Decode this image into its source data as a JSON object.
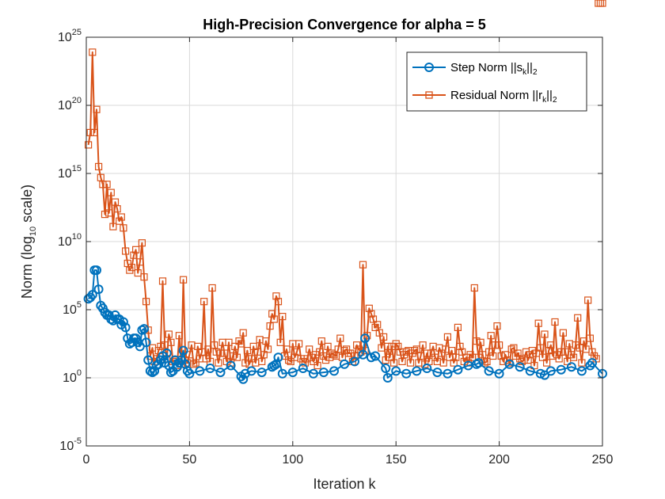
{
  "chart_data": {
    "type": "line",
    "title": "High-Precision Convergence for alpha = 5",
    "xlabel": "Iteration k",
    "ylabel": {
      "before": "Norm (log",
      "sub": "10",
      "after": " scale)"
    },
    "xlim": [
      0,
      250
    ],
    "ylim_log10": [
      -5,
      25
    ],
    "yscale": "log",
    "grid": true,
    "legend_position": "top-right",
    "x_ticks": [
      "0",
      "50",
      "100",
      "150",
      "200",
      "250"
    ],
    "y_ticks": [
      {
        "base": "10",
        "exp": "-5"
      },
      {
        "base": "10",
        "exp": "0"
      },
      {
        "base": "10",
        "exp": "5"
      },
      {
        "base": "10",
        "exp": "10"
      },
      {
        "base": "10",
        "exp": "15"
      },
      {
        "base": "10",
        "exp": "20"
      },
      {
        "base": "10",
        "exp": "25"
      }
    ],
    "series": [
      {
        "name": "Step Norm ||s_k||_2",
        "legend": {
          "before": "Step Norm ||s",
          "sub": "k",
          "after": "||",
          "sub2": "2"
        },
        "color": "#0072BD",
        "marker": "circle",
        "x": [
          1,
          2,
          3,
          4,
          5,
          6,
          7,
          8,
          9,
          10,
          11,
          12,
          13,
          14,
          15,
          16,
          17,
          18,
          19,
          20,
          21,
          22,
          23,
          24,
          25,
          26,
          27,
          28,
          29,
          30,
          31,
          32,
          33,
          34,
          35,
          36,
          37,
          38,
          39,
          40,
          41,
          42,
          43,
          44,
          45,
          46,
          47,
          48,
          49,
          50,
          55,
          60,
          65,
          70,
          75,
          76,
          77,
          80,
          85,
          90,
          91,
          92,
          93,
          95,
          100,
          105,
          110,
          115,
          120,
          125,
          130,
          134,
          135,
          138,
          140,
          145,
          146,
          150,
          155,
          160,
          165,
          170,
          175,
          180,
          185,
          189,
          190,
          195,
          200,
          205,
          210,
          215,
          220,
          222,
          225,
          230,
          235,
          240,
          244,
          245,
          250
        ],
        "log10_y": [
          5.8,
          5.9,
          6.1,
          7.9,
          7.9,
          6.5,
          5.3,
          5.1,
          4.8,
          4.6,
          4.6,
          4.3,
          4.2,
          4.6,
          4.3,
          4.3,
          3.9,
          4.1,
          3.7,
          2.9,
          2.5,
          2.6,
          2.9,
          2.9,
          2.6,
          2.3,
          3.5,
          3.6,
          2.6,
          1.3,
          0.5,
          0.4,
          0.5,
          0.9,
          1.0,
          1.3,
          1.6,
          1.1,
          1.8,
          0.9,
          0.4,
          0.5,
          1.3,
          0.8,
          1.1,
          1.3,
          2.0,
          1.0,
          0.5,
          0.3,
          0.5,
          0.7,
          0.4,
          0.9,
          0.1,
          -0.1,
          0.3,
          0.5,
          0.4,
          0.8,
          0.9,
          1.0,
          1.5,
          0.3,
          0.4,
          0.7,
          0.3,
          0.4,
          0.5,
          1.0,
          1.2,
          1.7,
          2.9,
          1.5,
          1.6,
          0.7,
          0.0,
          0.5,
          0.3,
          0.5,
          0.7,
          0.4,
          0.3,
          0.6,
          0.9,
          1.0,
          1.1,
          0.5,
          0.3,
          1.0,
          0.8,
          0.5,
          0.3,
          0.2,
          0.5,
          0.6,
          0.8,
          0.5,
          0.9,
          1.1,
          0.3
        ]
      },
      {
        "name": "Residual Norm ||r_k||_2",
        "legend": {
          "before": "Residual Norm ||r",
          "sub": "k",
          "after": "||",
          "sub2": "2"
        },
        "color": "#D95319",
        "marker": "square",
        "x": [
          1,
          2,
          3,
          4,
          5,
          6,
          7,
          8,
          9,
          10,
          11,
          12,
          13,
          14,
          15,
          16,
          17,
          18,
          19,
          20,
          21,
          22,
          23,
          24,
          25,
          26,
          27,
          28,
          29,
          30,
          31,
          32,
          33,
          34,
          35,
          36,
          37,
          38,
          39,
          40,
          41,
          42,
          43,
          44,
          45,
          46,
          47,
          48,
          49,
          50,
          51,
          52,
          53,
          54,
          55,
          56,
          57,
          58,
          59,
          60,
          61,
          62,
          63,
          64,
          65,
          66,
          67,
          68,
          69,
          70,
          71,
          72,
          73,
          74,
          75,
          76,
          77,
          78,
          79,
          80,
          81,
          82,
          83,
          84,
          85,
          86,
          87,
          88,
          89,
          90,
          91,
          92,
          93,
          94,
          95,
          96,
          97,
          98,
          99,
          100,
          101,
          102,
          103,
          104,
          105,
          106,
          107,
          108,
          109,
          110,
          111,
          112,
          113,
          114,
          115,
          116,
          117,
          118,
          119,
          120,
          121,
          122,
          123,
          124,
          125,
          126,
          127,
          128,
          129,
          130,
          131,
          132,
          133,
          134,
          135,
          136,
          137,
          138,
          139,
          140,
          141,
          142,
          143,
          144,
          145,
          146,
          147,
          148,
          149,
          150,
          151,
          152,
          153,
          154,
          155,
          156,
          157,
          158,
          159,
          160,
          161,
          162,
          163,
          164,
          165,
          166,
          167,
          168,
          169,
          170,
          171,
          172,
          173,
          174,
          175,
          176,
          177,
          178,
          179,
          180,
          181,
          182,
          183,
          184,
          185,
          186,
          187,
          188,
          189,
          190,
          191,
          192,
          193,
          194,
          195,
          196,
          197,
          198,
          199,
          200,
          201,
          202,
          203,
          204,
          205,
          206,
          207,
          208,
          209,
          210,
          211,
          212,
          213,
          214,
          215,
          216,
          217,
          218,
          219,
          220,
          221,
          222,
          223,
          224,
          225,
          226,
          227,
          228,
          229,
          230,
          231,
          232,
          233,
          234,
          235,
          236,
          237,
          238,
          239,
          240,
          241,
          242,
          243,
          244,
          245,
          246,
          247,
          248,
          249,
          250
        ],
        "log10_y": [
          17.1,
          18.0,
          23.9,
          18.0,
          19.7,
          15.5,
          14.7,
          14.2,
          12.0,
          14.2,
          12.1,
          13.6,
          11.1,
          12.9,
          12.4,
          11.5,
          11.8,
          11.0,
          9.3,
          8.4,
          7.9,
          8.1,
          9.0,
          9.4,
          7.7,
          8.5,
          9.9,
          7.4,
          5.6,
          3.5,
          1.6,
          2.2,
          1.2,
          1.4,
          2.0,
          2.3,
          7.1,
          2.4,
          1.4,
          3.2,
          2.6,
          1.2,
          1.3,
          0.9,
          3.1,
          1.0,
          7.2,
          1.3,
          1.1,
          1.7,
          2.4,
          1.0,
          1.1,
          2.3,
          1.4,
          1.9,
          5.6,
          1.4,
          2.1,
          1.2,
          6.6,
          2.4,
          1.9,
          1.1,
          1.8,
          2.6,
          1.8,
          1.2,
          2.6,
          1.1,
          1.6,
          2.3,
          1.5,
          2.7,
          2.5,
          3.3,
          1.1,
          2.0,
          1.0,
          1.4,
          2.3,
          1.1,
          1.9,
          2.8,
          1.2,
          1.7,
          2.7,
          2.1,
          3.8,
          4.7,
          4.3,
          6.0,
          5.6,
          2.6,
          4.5,
          1.6,
          2.1,
          1.3,
          1.2,
          2.5,
          1.5,
          1.9,
          2.5,
          1.4,
          1.2,
          1.1,
          1.4,
          2.1,
          1.5,
          1.2,
          1.7,
          0.9,
          1.9,
          2.7,
          1.6,
          1.3,
          2.3,
          1.5,
          1.8,
          1.7,
          1.6,
          2.1,
          2.9,
          1.5,
          2.0,
          2.1,
          1.8,
          1.8,
          1.2,
          1.6,
          2.4,
          2.1,
          1.9,
          8.3,
          2.0,
          3.1,
          5.1,
          4.7,
          4.3,
          3.7,
          3.9,
          3.3,
          2.2,
          3.0,
          1.3,
          2.3,
          1.5,
          2.3,
          1.1,
          2.5,
          2.3,
          1.9,
          1.2,
          1.7,
          1.9,
          2.0,
          1.1,
          1.8,
          2.0,
          2.1,
          1.1,
          1.6,
          2.4,
          1.0,
          1.8,
          1.2,
          1.8,
          2.3,
          1.5,
          1.2,
          2.2,
          1.8,
          1.1,
          2.1,
          3.0,
          1.5,
          2.0,
          1.1,
          1.5,
          3.7,
          2.3,
          1.9,
          1.2,
          1.5,
          1.1,
          1.7,
          1.5,
          6.6,
          2.7,
          1.5,
          2.6,
          1.7,
          1.1,
          1.2,
          1.9,
          3.1,
          1.6,
          2.4,
          3.8,
          2.4,
          1.6,
          1.2,
          1.7,
          1.3,
          1.1,
          2.1,
          2.2,
          1.6,
          1.8,
          1.4,
          1.2,
          1.3,
          1.9,
          1.3,
          1.7,
          2.0,
          0.9,
          1.8,
          4.0,
          2.2,
          1.5,
          3.2,
          1.1,
          2.0,
          2.4,
          1.6,
          4.1,
          1.7,
          1.4,
          1.9,
          3.3,
          1.9,
          1.2,
          2.5,
          1.7,
          1.5,
          2.4,
          4.4,
          2.2,
          1.1,
          2.7,
          2.1,
          5.7,
          2.9,
          1.9,
          1.6,
          1.4
        ]
      }
    ]
  }
}
